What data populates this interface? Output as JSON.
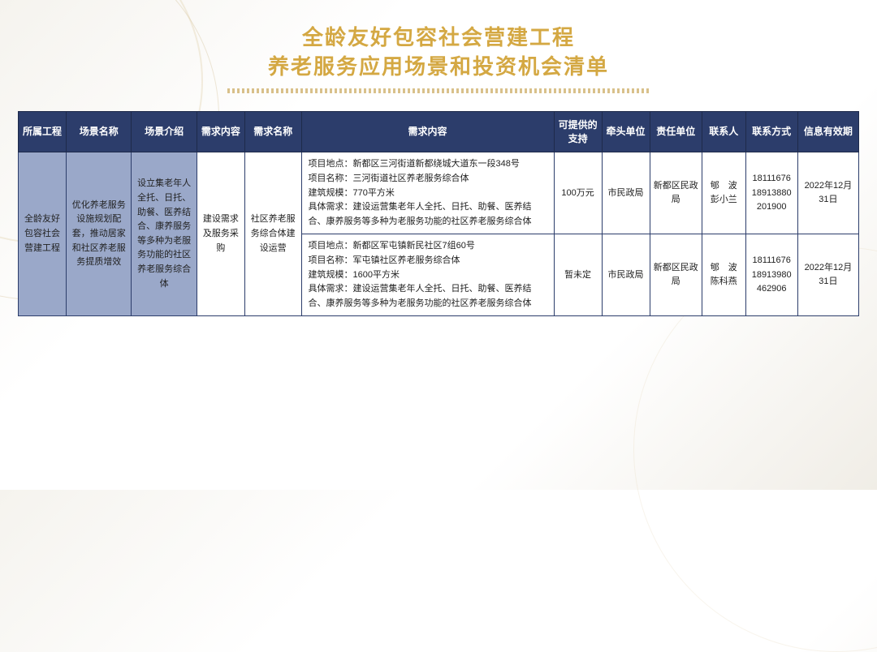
{
  "title": {
    "line1": "全龄友好包容社会营建工程",
    "line2": "养老服务应用场景和投资机会清单"
  },
  "colors": {
    "header_bg": "#2c3d6b",
    "header_text": "#ffffff",
    "border": "#2c3d6b",
    "merged_cell_bg": "#9aa8c9",
    "title_color": "#d4a843",
    "underline_color": "#c9a659"
  },
  "columns": [
    "所属工程",
    "场景名称",
    "场景介绍",
    "需求内容",
    "需求名称",
    "需求内容",
    "可提供的支持",
    "牵头单位",
    "责任单位",
    "联系人",
    "联系方式",
    "信息有效期"
  ],
  "merged": {
    "project": "全龄友好包容社会营建工程",
    "scene_name": "优化养老服务设施规划配套，推动居家和社区养老服务提质增效",
    "scene_intro": "设立集老年人全托、日托、助餐、医养结合、康养服务等多种为老服务功能的社区养老服务综合体",
    "req_type": "建设需求及服务采购",
    "req_name": "社区养老服务综合体建设运营"
  },
  "rows": [
    {
      "req_content": "项目地点：新都区三河街道新都绕城大道东一段348号\n项目名称：三河街道社区养老服务综合体\n建筑规模：770平方米\n具体需求：建设运营集老年人全托、日托、助餐、医养结合、康养服务等多种为老服务功能的社区养老服务综合体",
      "support": "100万元",
      "lead_unit": "市民政局",
      "resp_unit": "新都区民政局",
      "contact": "郇　波 彭小兰",
      "phone": "18111676 18913880 201900",
      "valid": "2022年12月31日"
    },
    {
      "req_content": "项目地点：新都区军屯镇新民社区7组60号\n项目名称：军屯镇社区养老服务综合体\n建筑规模：1600平方米\n具体需求：建设运营集老年人全托、日托、助餐、医养结合、康养服务等多种为老服务功能的社区养老服务综合体",
      "support": "暂未定",
      "lead_unit": "市民政局",
      "resp_unit": "新都区民政局",
      "contact": "郇　波 陈科燕",
      "phone": "18111676 18913980 462906",
      "valid": "2022年12月31日"
    }
  ]
}
